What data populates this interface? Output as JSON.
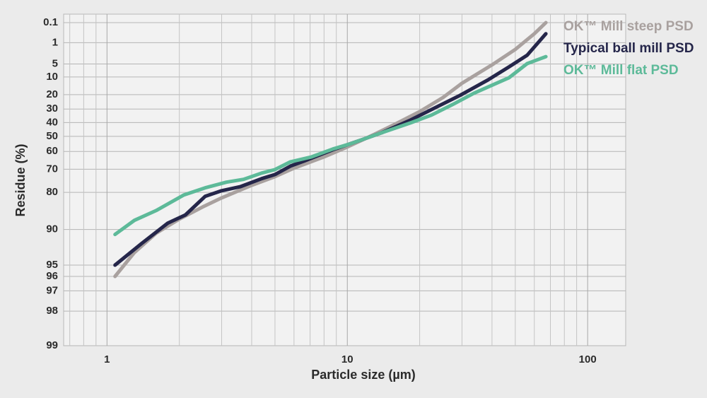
{
  "chart_data": {
    "type": "line",
    "x_label": "Particle size (µm)",
    "y_label": "Residue (%)",
    "xscale": "log",
    "yscale": "rosin-rammler",
    "grid": true,
    "legend": "top-right",
    "xlim": [
      0.66,
      144
    ],
    "xticks": [
      1,
      10,
      100
    ],
    "ylim": [
      0.1,
      99
    ],
    "yticks": [
      0.1,
      1,
      5,
      10,
      20,
      30,
      40,
      50,
      60,
      70,
      80,
      90,
      95,
      96,
      97,
      98,
      99
    ],
    "series": [
      {
        "name": "OK™ Mill steep PSD",
        "color": "#a9a19f",
        "x": [
          1.08,
          1.3,
          1.6,
          2,
          2.5,
          3,
          4,
          5,
          6,
          8,
          10,
          13,
          16,
          20,
          25,
          30,
          40,
          50,
          60,
          67
        ],
        "values": [
          96,
          93.6,
          90.7,
          87.8,
          84.7,
          81.9,
          77.3,
          73.6,
          69.5,
          63.3,
          57.2,
          48.5,
          40.8,
          31.9,
          21.9,
          13.2,
          5.3,
          1.8,
          0.4,
          0.1
        ]
      },
      {
        "name": "Typical ball mill PSD",
        "color": "#25264a",
        "x": [
          1.08,
          1.39,
          1.79,
          2.12,
          2.56,
          3,
          3.6,
          4.4,
          5,
          5.8,
          6.6,
          8.7,
          10.2,
          13.9,
          18.3,
          24,
          29.4,
          38.5,
          47,
          56,
          67
        ],
        "values": [
          95,
          92.4,
          88.7,
          86.8,
          81.4,
          79.4,
          77.8,
          74.5,
          72.6,
          68.4,
          65.7,
          59,
          55.3,
          47.5,
          38.2,
          27.8,
          20.5,
          11.4,
          6,
          2.8,
          0.4
        ]
      },
      {
        "name": "OK™ Mill flat PSD",
        "color": "#5dba99",
        "x": [
          1.08,
          1.3,
          1.6,
          2.09,
          2.56,
          3.14,
          3.7,
          4.4,
          5,
          5.8,
          7.1,
          8.7,
          10.2,
          13.9,
          18.3,
          22.4,
          27.4,
          33.6,
          47,
          56,
          67
        ],
        "values": [
          90.9,
          88.1,
          85.7,
          80.9,
          78.3,
          76,
          74.8,
          71.9,
          70.2,
          66.1,
          63.3,
          58.5,
          55.3,
          47.5,
          40.3,
          34.5,
          26.8,
          19.1,
          10.4,
          4.9,
          3.1
        ]
      }
    ]
  }
}
